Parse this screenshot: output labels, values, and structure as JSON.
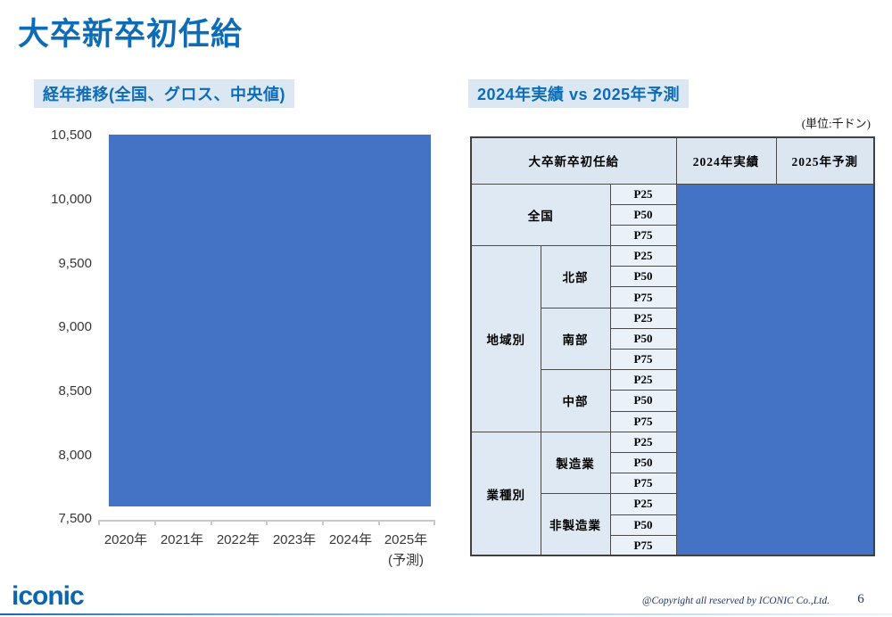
{
  "slide": {
    "title": "大卒新卒初任給",
    "logo_text": "iconic",
    "copyright": "@Copyright all reserved by ICONIC Co.,Ltd.",
    "page_number": "6"
  },
  "left_panel": {
    "subtitle": "経年推移(全国、グロス、中央値)"
  },
  "right_panel": {
    "subtitle": "2024年実績 vs 2025年予測",
    "unit_label": "(単位:千ドン)",
    "table": {
      "header": {
        "col_left": "大卒新卒初任給",
        "col_2024": "2024年実績",
        "col_2025": "2025年予測"
      },
      "groups": [
        {
          "category": "全国",
          "merge_subcolumn": true,
          "subgroups": [
            {
              "name": "",
              "percentiles": [
                "P25",
                "P50",
                "P75"
              ]
            }
          ]
        },
        {
          "category": "地域別",
          "merge_subcolumn": false,
          "subgroups": [
            {
              "name": "北部",
              "percentiles": [
                "P25",
                "P50",
                "P75"
              ]
            },
            {
              "name": "南部",
              "percentiles": [
                "P25",
                "P50",
                "P75"
              ]
            },
            {
              "name": "中部",
              "percentiles": [
                "P25",
                "P50",
                "P75"
              ]
            }
          ]
        },
        {
          "category": "業種別",
          "merge_subcolumn": false,
          "subgroups": [
            {
              "name": "製造業",
              "percentiles": [
                "P25",
                "P50",
                "P75"
              ]
            },
            {
              "name": "非製造業",
              "percentiles": [
                "P25",
                "P50",
                "P75"
              ]
            }
          ]
        }
      ],
      "values_hidden": true,
      "overlay_note": "data cells covered by solid blue rectangle"
    }
  },
  "chart_data": {
    "type": "bar",
    "title": "経年推移(全国、グロス、中央値)",
    "categories": [
      "2020年",
      "2021年",
      "2022年",
      "2023年",
      "2024年",
      "2025年(予測)"
    ],
    "x_labels": [
      "2020年",
      "2021年",
      "2022年",
      "2023年",
      "2024年",
      "2025年"
    ],
    "x_sub_label": "(予測)",
    "y_tick_labels": [
      "10,500",
      "10,000",
      "9,500",
      "9,000",
      "8,500",
      "8,000",
      "7,500"
    ],
    "ylim": [
      7500,
      10500
    ],
    "values_hidden": true,
    "overlay_note": "plot area fully covered by solid blue rectangle, no data points visible",
    "grid": false,
    "legend": false
  },
  "colors": {
    "accent_blue": "#0d6cb5",
    "subtitle_highlight": "#dbe8f4",
    "overlay_blue": "#4472c4",
    "table_header_bg": "#dce6f1",
    "table_percentile_bg": "#eaf1f8",
    "table_border": "#4a4a4a",
    "footer_navy": "#1f3864",
    "logo_blue": "#0a66ae",
    "axis_gray": "#c9c9c9"
  }
}
